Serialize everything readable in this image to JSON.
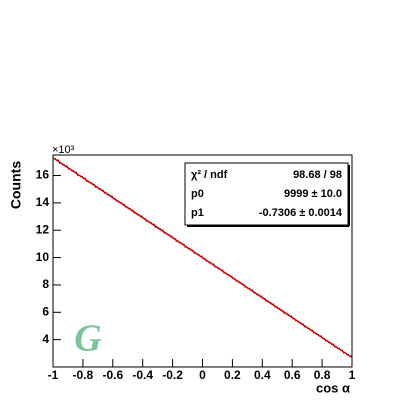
{
  "chart_data": {
    "type": "histogram",
    "x_label": "cos α",
    "y_label": "Counts",
    "y_scale_label": "×10³",
    "logo": "G",
    "xlim": [
      -1,
      1
    ],
    "ylim": [
      2.0,
      17.5
    ],
    "xticks": [
      -1,
      -0.8,
      -0.6,
      -0.4,
      -0.2,
      0,
      0.2,
      0.4,
      0.6,
      0.8,
      1
    ],
    "yticks": [
      4,
      6,
      8,
      10,
      12,
      14,
      16
    ],
    "bins": [
      -1,
      -0.98,
      -0.96,
      -0.94,
      -0.92,
      -0.9,
      -0.88,
      -0.86,
      -0.84,
      -0.82,
      -0.8,
      -0.78,
      -0.76,
      -0.74,
      -0.72,
      -0.7,
      -0.68,
      -0.66,
      -0.64,
      -0.62,
      -0.6,
      -0.58,
      -0.56,
      -0.54,
      -0.52,
      -0.5,
      -0.48,
      -0.46,
      -0.44,
      -0.42,
      -0.4,
      -0.38,
      -0.36,
      -0.34,
      -0.32,
      -0.3,
      -0.28,
      -0.26,
      -0.24,
      -0.22,
      -0.2,
      -0.18,
      -0.16,
      -0.14,
      -0.12,
      -0.1,
      -0.08,
      -0.06,
      -0.04,
      -0.02,
      0,
      0.02,
      0.04,
      0.06,
      0.08,
      0.1,
      0.12,
      0.14,
      0.16,
      0.18,
      0.2,
      0.22,
      0.24,
      0.26,
      0.28,
      0.3,
      0.32,
      0.34,
      0.36,
      0.38,
      0.4,
      0.42,
      0.44,
      0.46,
      0.48,
      0.5,
      0.52,
      0.54,
      0.56,
      0.58,
      0.6,
      0.62,
      0.64,
      0.66,
      0.68,
      0.7,
      0.72,
      0.74,
      0.76,
      0.78,
      0.8,
      0.82,
      0.84,
      0.86,
      0.88,
      0.9,
      0.92,
      0.94,
      0.96,
      0.98,
      1
    ],
    "values": [
      17.23,
      17.12,
      16.9,
      16.79,
      16.68,
      16.47,
      16.35,
      16.24,
      16.02,
      15.92,
      15.8,
      15.58,
      15.48,
      15.36,
      15.15,
      15.04,
      14.92,
      14.72,
      14.6,
      14.49,
      14.31,
      14.13,
      14.02,
      13.9,
      13.7,
      13.58,
      13.46,
      13.26,
      13.14,
      13.03,
      12.85,
      12.67,
      12.56,
      12.44,
      12.22,
      12.12,
      12.0,
      11.79,
      11.68,
      11.56,
      11.39,
      11.2,
      11.09,
      10.98,
      10.77,
      10.66,
      10.54,
      10.33,
      10.22,
      10.1,
      9.93,
      9.75,
      9.63,
      9.52,
      9.31,
      9.19,
      9.08,
      8.87,
      8.76,
      8.64,
      8.46,
      8.29,
      8.17,
      8.05,
      7.85,
      7.73,
      7.62,
      7.41,
      7.29,
      7.18,
      7.0,
      6.83,
      6.71,
      6.59,
      6.39,
      6.27,
      6.15,
      5.95,
      5.83,
      5.72,
      5.54,
      5.37,
      5.25,
      5.13,
      4.93,
      4.81,
      4.69,
      4.49,
      4.37,
      4.26,
      4.08,
      3.91,
      3.79,
      3.67,
      3.47,
      3.35,
      3.23,
      3.03,
      2.91,
      2.8
    ],
    "color": "#000000",
    "fit": {
      "x": [
        -1,
        1
      ],
      "values": [
        17.3,
        2.69
      ],
      "color": "#e00000"
    },
    "stats": [
      [
        "χ² / ndf",
        "98.68 / 98"
      ],
      [
        "p0",
        "9999 ± 10.0"
      ],
      [
        "p1",
        "-0.7306 ± 0.0014"
      ]
    ]
  }
}
